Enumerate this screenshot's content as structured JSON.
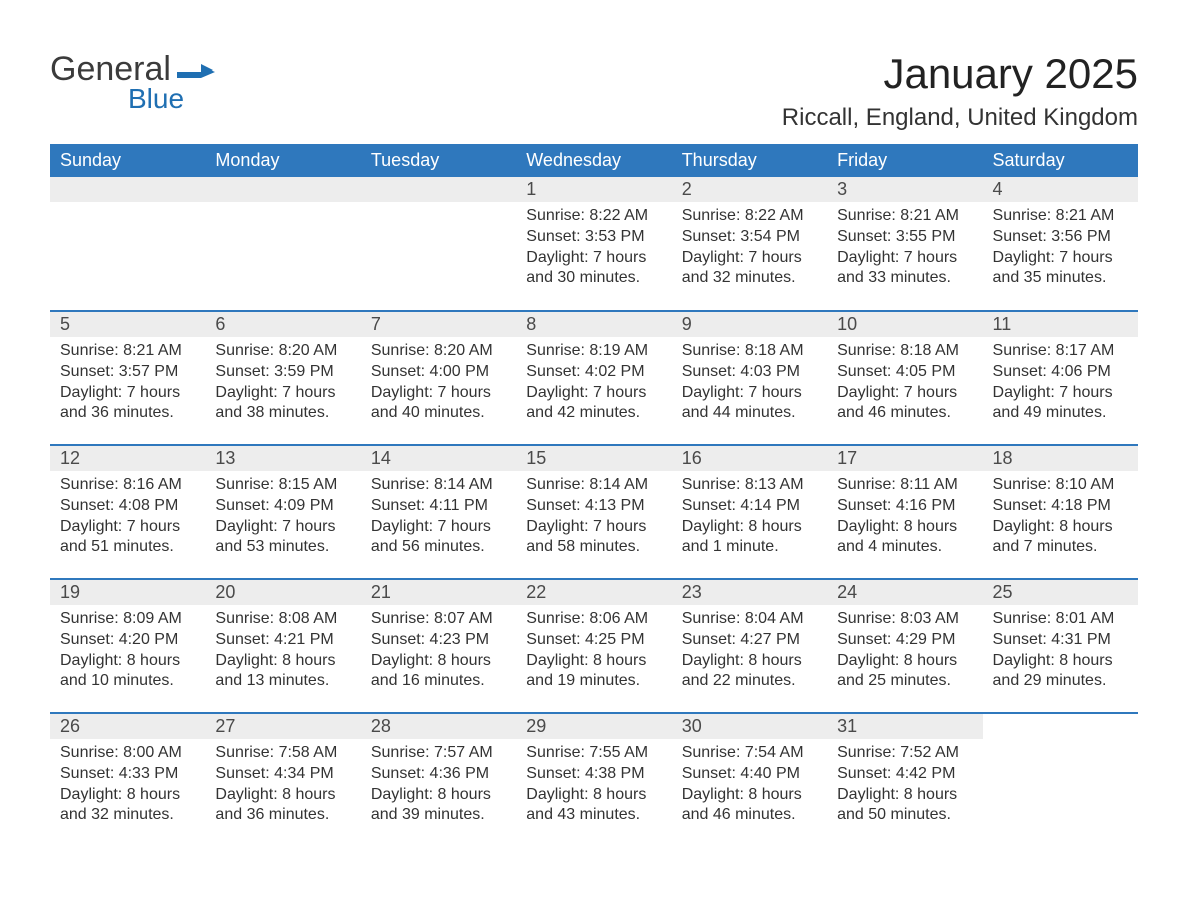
{
  "logo": {
    "word1": "General",
    "word2": "Blue",
    "word1_color": "#3b3b3b",
    "word2_color": "#1f6fb2",
    "flag_color": "#1f6fb2"
  },
  "title": "January 2025",
  "location": "Riccall, England, United Kingdom",
  "colors": {
    "header_bg": "#2f78bd",
    "header_text": "#ffffff",
    "daynum_bg": "#ededed",
    "row_border": "#2f78bd",
    "body_text": "#333333",
    "page_bg": "#ffffff"
  },
  "fonts": {
    "title_size": 42,
    "location_size": 24,
    "th_size": 18,
    "daynum_size": 18,
    "cell_size": 16
  },
  "weekdays": [
    "Sunday",
    "Monday",
    "Tuesday",
    "Wednesday",
    "Thursday",
    "Friday",
    "Saturday"
  ],
  "weeks": [
    [
      null,
      null,
      null,
      {
        "day": "1",
        "sunrise": "Sunrise: 8:22 AM",
        "sunset": "Sunset: 3:53 PM",
        "daylight1": "Daylight: 7 hours",
        "daylight2": "and 30 minutes."
      },
      {
        "day": "2",
        "sunrise": "Sunrise: 8:22 AM",
        "sunset": "Sunset: 3:54 PM",
        "daylight1": "Daylight: 7 hours",
        "daylight2": "and 32 minutes."
      },
      {
        "day": "3",
        "sunrise": "Sunrise: 8:21 AM",
        "sunset": "Sunset: 3:55 PM",
        "daylight1": "Daylight: 7 hours",
        "daylight2": "and 33 minutes."
      },
      {
        "day": "4",
        "sunrise": "Sunrise: 8:21 AM",
        "sunset": "Sunset: 3:56 PM",
        "daylight1": "Daylight: 7 hours",
        "daylight2": "and 35 minutes."
      }
    ],
    [
      {
        "day": "5",
        "sunrise": "Sunrise: 8:21 AM",
        "sunset": "Sunset: 3:57 PM",
        "daylight1": "Daylight: 7 hours",
        "daylight2": "and 36 minutes."
      },
      {
        "day": "6",
        "sunrise": "Sunrise: 8:20 AM",
        "sunset": "Sunset: 3:59 PM",
        "daylight1": "Daylight: 7 hours",
        "daylight2": "and 38 minutes."
      },
      {
        "day": "7",
        "sunrise": "Sunrise: 8:20 AM",
        "sunset": "Sunset: 4:00 PM",
        "daylight1": "Daylight: 7 hours",
        "daylight2": "and 40 minutes."
      },
      {
        "day": "8",
        "sunrise": "Sunrise: 8:19 AM",
        "sunset": "Sunset: 4:02 PM",
        "daylight1": "Daylight: 7 hours",
        "daylight2": "and 42 minutes."
      },
      {
        "day": "9",
        "sunrise": "Sunrise: 8:18 AM",
        "sunset": "Sunset: 4:03 PM",
        "daylight1": "Daylight: 7 hours",
        "daylight2": "and 44 minutes."
      },
      {
        "day": "10",
        "sunrise": "Sunrise: 8:18 AM",
        "sunset": "Sunset: 4:05 PM",
        "daylight1": "Daylight: 7 hours",
        "daylight2": "and 46 minutes."
      },
      {
        "day": "11",
        "sunrise": "Sunrise: 8:17 AM",
        "sunset": "Sunset: 4:06 PM",
        "daylight1": "Daylight: 7 hours",
        "daylight2": "and 49 minutes."
      }
    ],
    [
      {
        "day": "12",
        "sunrise": "Sunrise: 8:16 AM",
        "sunset": "Sunset: 4:08 PM",
        "daylight1": "Daylight: 7 hours",
        "daylight2": "and 51 minutes."
      },
      {
        "day": "13",
        "sunrise": "Sunrise: 8:15 AM",
        "sunset": "Sunset: 4:09 PM",
        "daylight1": "Daylight: 7 hours",
        "daylight2": "and 53 minutes."
      },
      {
        "day": "14",
        "sunrise": "Sunrise: 8:14 AM",
        "sunset": "Sunset: 4:11 PM",
        "daylight1": "Daylight: 7 hours",
        "daylight2": "and 56 minutes."
      },
      {
        "day": "15",
        "sunrise": "Sunrise: 8:14 AM",
        "sunset": "Sunset: 4:13 PM",
        "daylight1": "Daylight: 7 hours",
        "daylight2": "and 58 minutes."
      },
      {
        "day": "16",
        "sunrise": "Sunrise: 8:13 AM",
        "sunset": "Sunset: 4:14 PM",
        "daylight1": "Daylight: 8 hours",
        "daylight2": "and 1 minute."
      },
      {
        "day": "17",
        "sunrise": "Sunrise: 8:11 AM",
        "sunset": "Sunset: 4:16 PM",
        "daylight1": "Daylight: 8 hours",
        "daylight2": "and 4 minutes."
      },
      {
        "day": "18",
        "sunrise": "Sunrise: 8:10 AM",
        "sunset": "Sunset: 4:18 PM",
        "daylight1": "Daylight: 8 hours",
        "daylight2": "and 7 minutes."
      }
    ],
    [
      {
        "day": "19",
        "sunrise": "Sunrise: 8:09 AM",
        "sunset": "Sunset: 4:20 PM",
        "daylight1": "Daylight: 8 hours",
        "daylight2": "and 10 minutes."
      },
      {
        "day": "20",
        "sunrise": "Sunrise: 8:08 AM",
        "sunset": "Sunset: 4:21 PM",
        "daylight1": "Daylight: 8 hours",
        "daylight2": "and 13 minutes."
      },
      {
        "day": "21",
        "sunrise": "Sunrise: 8:07 AM",
        "sunset": "Sunset: 4:23 PM",
        "daylight1": "Daylight: 8 hours",
        "daylight2": "and 16 minutes."
      },
      {
        "day": "22",
        "sunrise": "Sunrise: 8:06 AM",
        "sunset": "Sunset: 4:25 PM",
        "daylight1": "Daylight: 8 hours",
        "daylight2": "and 19 minutes."
      },
      {
        "day": "23",
        "sunrise": "Sunrise: 8:04 AM",
        "sunset": "Sunset: 4:27 PM",
        "daylight1": "Daylight: 8 hours",
        "daylight2": "and 22 minutes."
      },
      {
        "day": "24",
        "sunrise": "Sunrise: 8:03 AM",
        "sunset": "Sunset: 4:29 PM",
        "daylight1": "Daylight: 8 hours",
        "daylight2": "and 25 minutes."
      },
      {
        "day": "25",
        "sunrise": "Sunrise: 8:01 AM",
        "sunset": "Sunset: 4:31 PM",
        "daylight1": "Daylight: 8 hours",
        "daylight2": "and 29 minutes."
      }
    ],
    [
      {
        "day": "26",
        "sunrise": "Sunrise: 8:00 AM",
        "sunset": "Sunset: 4:33 PM",
        "daylight1": "Daylight: 8 hours",
        "daylight2": "and 32 minutes."
      },
      {
        "day": "27",
        "sunrise": "Sunrise: 7:58 AM",
        "sunset": "Sunset: 4:34 PM",
        "daylight1": "Daylight: 8 hours",
        "daylight2": "and 36 minutes."
      },
      {
        "day": "28",
        "sunrise": "Sunrise: 7:57 AM",
        "sunset": "Sunset: 4:36 PM",
        "daylight1": "Daylight: 8 hours",
        "daylight2": "and 39 minutes."
      },
      {
        "day": "29",
        "sunrise": "Sunrise: 7:55 AM",
        "sunset": "Sunset: 4:38 PM",
        "daylight1": "Daylight: 8 hours",
        "daylight2": "and 43 minutes."
      },
      {
        "day": "30",
        "sunrise": "Sunrise: 7:54 AM",
        "sunset": "Sunset: 4:40 PM",
        "daylight1": "Daylight: 8 hours",
        "daylight2": "and 46 minutes."
      },
      {
        "day": "31",
        "sunrise": "Sunrise: 7:52 AM",
        "sunset": "Sunset: 4:42 PM",
        "daylight1": "Daylight: 8 hours",
        "daylight2": "and 50 minutes."
      },
      null
    ]
  ]
}
